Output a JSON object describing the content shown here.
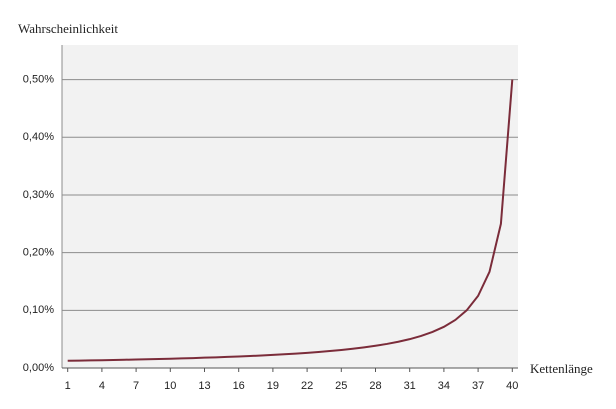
{
  "chart_data": {
    "type": "line",
    "y_label": "Wahrscheinlichkeit",
    "x_label": "Kettenlänge",
    "x": [
      1,
      2,
      3,
      4,
      5,
      6,
      7,
      8,
      9,
      10,
      11,
      12,
      13,
      14,
      15,
      16,
      17,
      18,
      19,
      20,
      21,
      22,
      23,
      24,
      25,
      26,
      27,
      28,
      29,
      30,
      31,
      32,
      33,
      34,
      35,
      36,
      37,
      38,
      39,
      40
    ],
    "series": [
      {
        "color": "#7b2c3a",
        "values": [
          0.0125,
          0.0128,
          0.0132,
          0.0135,
          0.0139,
          0.0143,
          0.0147,
          0.0152,
          0.0156,
          0.0161,
          0.0167,
          0.0172,
          0.0179,
          0.0185,
          0.0192,
          0.02,
          0.0208,
          0.0217,
          0.0227,
          0.0238,
          0.025,
          0.0263,
          0.0278,
          0.0294,
          0.0313,
          0.0333,
          0.0357,
          0.0385,
          0.0417,
          0.0455,
          0.05,
          0.0556,
          0.0625,
          0.0714,
          0.0833,
          0.1,
          0.125,
          0.1667,
          0.25,
          0.5
        ]
      }
    ],
    "xlim": [
      0.5,
      40.5
    ],
    "xticks": [
      1,
      4,
      7,
      10,
      13,
      16,
      19,
      22,
      25,
      28,
      31,
      34,
      37,
      40
    ],
    "ylim": [
      0,
      0.56
    ],
    "yticks": [
      {
        "value": 0,
        "label": "0,00%"
      },
      {
        "value": 0.1,
        "label": "0,10%"
      },
      {
        "value": 0.2,
        "label": "0,20%"
      },
      {
        "value": 0.3,
        "label": "0,30%"
      },
      {
        "value": 0.4,
        "label": "0,40%"
      },
      {
        "value": 0.5,
        "label": "0,50%"
      }
    ],
    "grid": true
  }
}
